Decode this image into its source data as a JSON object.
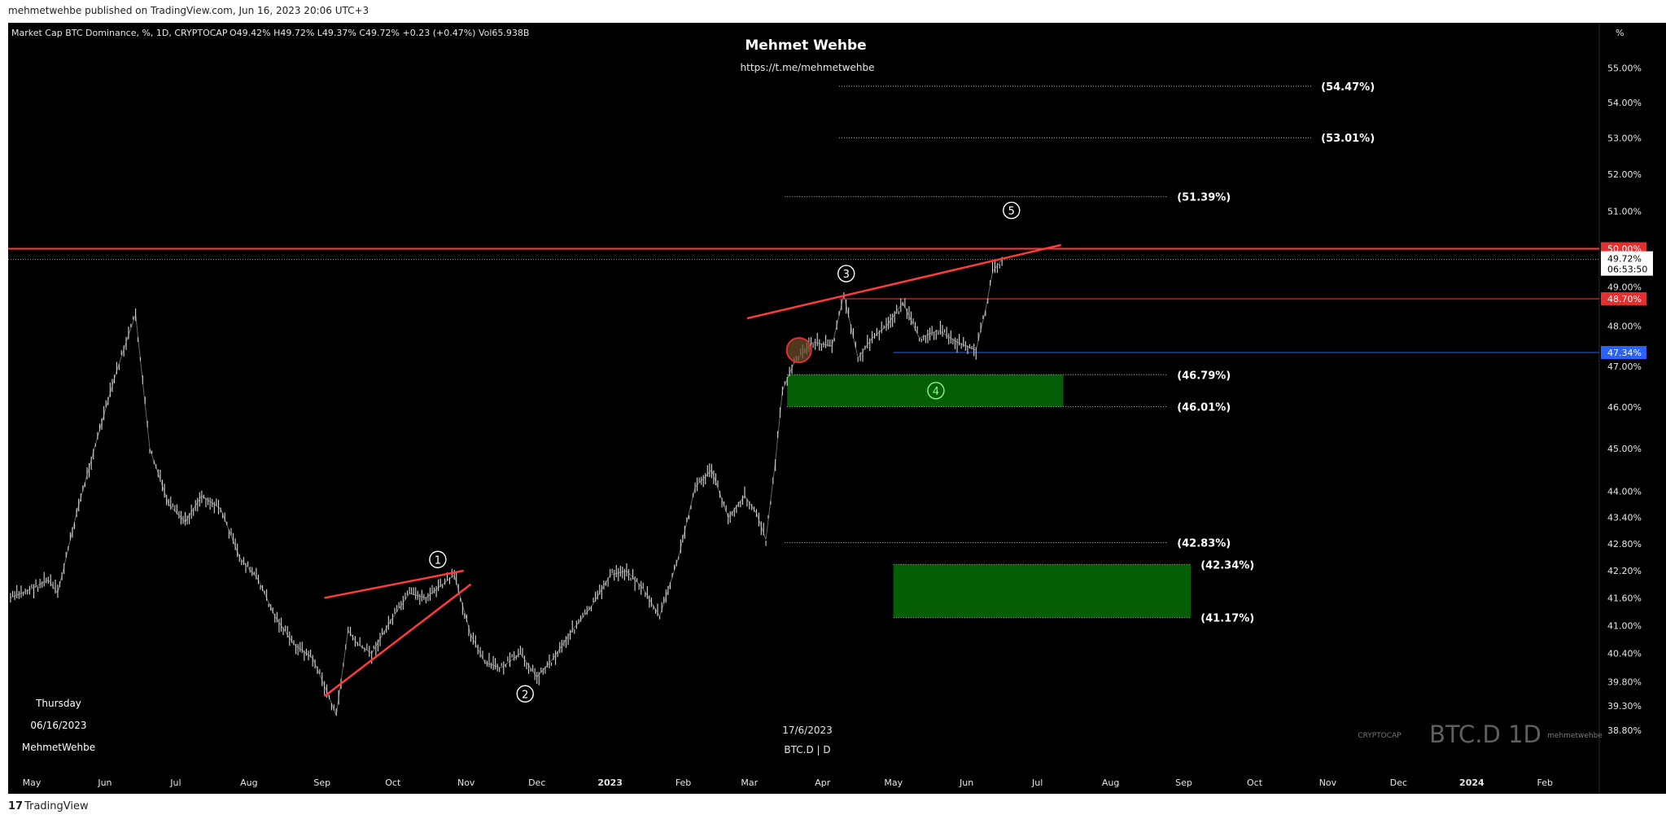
{
  "header": {
    "published_line": "mehmetwehbe published on TradingView.com, Jun 16, 2023 20:06 UTC+3"
  },
  "footer": {
    "brand": "TradingView",
    "brand_mark": "17"
  },
  "chart_info": {
    "symbol_line": "Market Cap BTC Dominance, %, 1D, CRYPTOCAP",
    "ohlc": "O49.42% H49.72% L49.37% C49.72% +0.23 (+0.47%) Vol65.938B",
    "author": "Mehmet Wehbe",
    "author_link": "https://t.me/mehmetwehbe",
    "date_label": "17/6/2023",
    "symbol_label": "BTC.D | D",
    "weekday": "Thursday",
    "date_short": "06/16/2023",
    "signature": "MehmetWehbe",
    "watermark_prefix": "CRYPTOCAP",
    "watermark_main": "BTC.D 1D",
    "watermark_suffix": "mehmetwehbe",
    "price_axis_unit": "%",
    "last_price": "49.72%",
    "countdown": "06:53:50"
  },
  "colors": {
    "background": "#000000",
    "candle": "#d8d8d8",
    "trendline": "#ff3b3b",
    "zone": "#055e05",
    "highlight_red": "#e03030",
    "highlight_blue": "#2962ff",
    "fib_dotted": "#bdbdbd"
  },
  "chart_data": {
    "type": "line",
    "title": "Market Cap BTC Dominance, %, 1D, CRYPTOCAP",
    "x_tick_labels": [
      "May",
      "Jun",
      "Jul",
      "Aug",
      "Sep",
      "Oct",
      "Nov",
      "Dec",
      "2023",
      "Feb",
      "Mar",
      "Apr",
      "May",
      "Jun",
      "Jul",
      "Aug",
      "Sep",
      "Oct",
      "Nov",
      "Dec",
      "2024",
      "Feb"
    ],
    "y_tick_labels": [
      "55.00%",
      "54.00%",
      "53.00%",
      "52.00%",
      "51.00%",
      "49.00%",
      "48.00%",
      "47.00%",
      "46.00%",
      "45.00%",
      "44.00%",
      "43.40%",
      "42.80%",
      "42.20%",
      "41.60%",
      "41.00%",
      "40.40%",
      "39.80%",
      "39.30%",
      "38.80%"
    ],
    "y_ticks": [
      55.0,
      54.0,
      53.0,
      52.0,
      51.0,
      49.0,
      48.0,
      47.0,
      46.0,
      45.0,
      44.0,
      43.4,
      42.8,
      42.2,
      41.6,
      41.0,
      40.4,
      39.8,
      39.3,
      38.8
    ],
    "ylim": [
      38.5,
      55.6
    ],
    "series": [
      {
        "values_per_month_approx": true,
        "x": [
          "2022-04-22",
          "2022-05-01",
          "2022-05-08",
          "2022-05-12",
          "2022-05-20",
          "2022-05-28",
          "2022-06-05",
          "2022-06-10",
          "2022-06-14",
          "2022-06-20",
          "2022-06-28",
          "2022-07-05",
          "2022-07-12",
          "2022-07-20",
          "2022-07-28",
          "2022-08-05",
          "2022-08-12",
          "2022-08-20",
          "2022-08-28",
          "2022-09-03",
          "2022-09-07",
          "2022-09-12",
          "2022-09-16",
          "2022-09-22",
          "2022-09-30",
          "2022-10-08",
          "2022-10-15",
          "2022-10-22",
          "2022-10-27",
          "2022-11-03",
          "2022-11-09",
          "2022-11-16",
          "2022-11-24",
          "2022-12-01",
          "2022-12-08",
          "2022-12-16",
          "2022-12-24",
          "2023-01-01",
          "2023-01-08",
          "2023-01-15",
          "2023-01-22",
          "2023-01-30",
          "2023-02-06",
          "2023-02-13",
          "2023-02-20",
          "2023-02-27",
          "2023-03-04",
          "2023-03-08",
          "2023-03-12",
          "2023-03-15",
          "2023-03-20",
          "2023-03-28",
          "2023-04-05",
          "2023-04-10",
          "2023-04-16",
          "2023-04-22",
          "2023-04-28",
          "2023-05-05",
          "2023-05-12",
          "2023-05-20",
          "2023-05-28",
          "2023-06-05",
          "2023-06-09",
          "2023-06-12",
          "2023-06-16"
        ],
        "values": [
          41.6,
          41.8,
          42.0,
          41.7,
          43.5,
          45.1,
          46.7,
          47.6,
          48.3,
          45.0,
          43.7,
          43.3,
          43.9,
          43.6,
          42.5,
          42.0,
          41.2,
          40.6,
          40.3,
          39.6,
          39.1,
          40.9,
          40.6,
          40.4,
          41.1,
          41.7,
          41.6,
          41.9,
          42.1,
          40.8,
          40.2,
          40.1,
          40.4,
          39.9,
          40.3,
          40.9,
          41.4,
          42.1,
          42.2,
          41.8,
          41.2,
          42.5,
          44.1,
          44.5,
          43.4,
          43.9,
          43.5,
          42.9,
          44.7,
          46.4,
          47.1,
          47.6,
          47.5,
          48.8,
          47.2,
          47.7,
          48.0,
          48.6,
          47.7,
          47.9,
          47.6,
          47.4,
          48.4,
          49.4,
          49.72
        ]
      }
    ],
    "resistance_line": {
      "value": 50.0,
      "label": "50.00%"
    },
    "support_line_red": {
      "value": 48.7,
      "label": "48.70%"
    },
    "support_line_blue": {
      "value": 47.34,
      "label": "47.34%"
    },
    "fib_levels": [
      {
        "value": 54.47,
        "label": "(54.47%)",
        "from": "2023-04-08",
        "to": "2023-10-25"
      },
      {
        "value": 53.01,
        "label": "(53.01%)",
        "from": "2023-04-08",
        "to": "2023-10-25"
      },
      {
        "value": 51.39,
        "label": "(51.39%)",
        "from": "2023-03-16",
        "to": "2023-08-25"
      },
      {
        "value": 46.79,
        "label": "(46.79%)",
        "from": "2023-03-17",
        "to": "2023-08-25"
      },
      {
        "value": 46.01,
        "label": "(46.01%)",
        "from": "2023-03-17",
        "to": "2023-08-25"
      },
      {
        "value": 42.83,
        "label": "(42.83%)",
        "from": "2023-03-16",
        "to": "2023-08-25"
      },
      {
        "value": 42.34,
        "label": "(42.34%)",
        "from": "2023-05-01",
        "to": "2023-09-04"
      },
      {
        "value": 41.17,
        "label": "(41.17%)",
        "from": "2023-05-01",
        "to": "2023-09-04"
      }
    ],
    "zones": [
      {
        "from": "2023-03-17",
        "to": "2023-07-12",
        "top": 46.79,
        "bottom": 46.01
      },
      {
        "from": "2023-05-01",
        "to": "2023-09-04",
        "top": 42.34,
        "bottom": 41.17
      }
    ],
    "trendlines": [
      {
        "x1": "2022-09-02",
        "y1": 41.6,
        "x2": "2022-10-31",
        "y2": 42.2
      },
      {
        "x1": "2022-09-02",
        "y1": 39.5,
        "x2": "2022-11-03",
        "y2": 41.9
      },
      {
        "x1": "2023-02-28",
        "y1": 48.2,
        "x2": "2023-07-11",
        "y2": 50.1
      }
    ],
    "wave_labels": [
      {
        "label": "1",
        "x": "2022-10-20",
        "y": 42.45
      },
      {
        "label": "2",
        "x": "2022-11-26",
        "y": 39.55
      },
      {
        "label": "3",
        "x": "2023-04-11",
        "y": 49.35
      },
      {
        "label": "4",
        "x": "2023-05-19",
        "y": 46.4
      },
      {
        "label": "5",
        "x": "2023-06-20",
        "y": 51.02
      }
    ],
    "marker_circle": {
      "x": "2023-03-22",
      "y": 47.4
    }
  }
}
